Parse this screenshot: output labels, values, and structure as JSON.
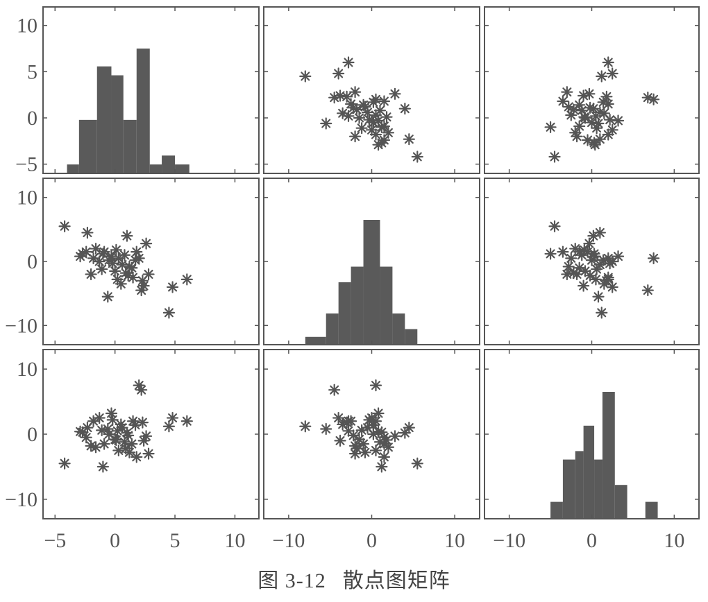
{
  "caption": {
    "number": "图 3-12",
    "title": "散点图矩阵"
  },
  "colors": {
    "ink": "#555555",
    "frame": "#555555",
    "background": "#ffffff",
    "bar": "#5a5a5a",
    "marker": "#555555"
  },
  "chart_data": {
    "type": "scatter-matrix",
    "grid": false,
    "variables": 3,
    "axis_ranges": [
      [
        -6,
        12
      ],
      [
        -13,
        13
      ],
      [
        -13,
        13
      ]
    ],
    "y_ticks": {
      "row1": [
        {
          "v": 10,
          "label": "10"
        },
        {
          "v": 5,
          "label": "5"
        },
        {
          "v": 0,
          "label": "0"
        },
        {
          "v": -5,
          "label": "−5"
        }
      ],
      "row2": [
        {
          "v": 10,
          "label": "10"
        },
        {
          "v": 0,
          "label": "0"
        },
        {
          "v": -10,
          "label": "−10"
        }
      ],
      "row3": [
        {
          "v": 10,
          "label": "10"
        },
        {
          "v": 0,
          "label": "0"
        },
        {
          "v": -10,
          "label": "−10"
        }
      ]
    },
    "x_ticks": {
      "col1": [
        {
          "v": -5,
          "label": "−5"
        },
        {
          "v": 0,
          "label": "0"
        },
        {
          "v": 5,
          "label": "5"
        },
        {
          "v": 10,
          "label": "10"
        }
      ],
      "col2": [
        {
          "v": -10,
          "label": "−10"
        },
        {
          "v": 0,
          "label": "0"
        },
        {
          "v": 10,
          "label": "10"
        }
      ],
      "col3": [
        {
          "v": -10,
          "label": "−10"
        },
        {
          "v": 0,
          "label": "0"
        },
        {
          "v": 10,
          "label": "10"
        }
      ]
    },
    "histograms": [
      {
        "variable": 1,
        "bars": [
          {
            "x0": -4,
            "x1": -3,
            "v": 1
          },
          {
            "x0": -3,
            "x1": -1.5,
            "v": 6
          },
          {
            "x0": -1.5,
            "x1": -0.3,
            "v": 12
          },
          {
            "x0": -0.3,
            "x1": 0.7,
            "v": 11
          },
          {
            "x0": 0.7,
            "x1": 1.8,
            "v": 6
          },
          {
            "x0": 1.8,
            "x1": 2.9,
            "v": 14
          },
          {
            "x0": 2.9,
            "x1": 3.9,
            "v": 1
          },
          {
            "x0": 3.9,
            "x1": 5.0,
            "v": 2
          },
          {
            "x0": 5.0,
            "x1": 6.2,
            "v": 1
          }
        ]
      },
      {
        "variable": 2,
        "bars": [
          {
            "x0": -8,
            "x1": -5.5,
            "v": 1
          },
          {
            "x0": -5.5,
            "x1": -4,
            "v": 4
          },
          {
            "x0": -4,
            "x1": -2.5,
            "v": 8
          },
          {
            "x0": -2.5,
            "x1": -1,
            "v": 10
          },
          {
            "x0": -1,
            "x1": 1,
            "v": 16
          },
          {
            "x0": 1,
            "x1": 2.5,
            "v": 10
          },
          {
            "x0": 2.5,
            "x1": 4,
            "v": 4
          },
          {
            "x0": 4,
            "x1": 5.5,
            "v": 2
          }
        ]
      },
      {
        "variable": 3,
        "bars": [
          {
            "x0": -5,
            "x1": -3.5,
            "v": 2
          },
          {
            "x0": -3.5,
            "x1": -2,
            "v": 7
          },
          {
            "x0": -2,
            "x1": -1,
            "v": 8
          },
          {
            "x0": -1,
            "x1": 0.3,
            "v": 11
          },
          {
            "x0": 0.3,
            "x1": 1.3,
            "v": 7
          },
          {
            "x0": 1.3,
            "x1": 2.8,
            "v": 15
          },
          {
            "x0": 2.8,
            "x1": 4.3,
            "v": 4
          },
          {
            "x0": 6.5,
            "x1": 8,
            "v": 2
          }
        ]
      }
    ],
    "samples": {
      "v1": [
        -4.2,
        -2.3,
        -2.4,
        -2.7,
        -1.8,
        -2.0,
        -1.3,
        -1.0,
        -0.9,
        -0.5,
        -0.3,
        0.0,
        0.2,
        0.3,
        0.5,
        0.8,
        1.0,
        1.2,
        1.5,
        1.8,
        2.0,
        2.3,
        2.6,
        2.2,
        -0.6,
        -1.6,
        0.6,
        1.4,
        4.8,
        6.0,
        4.5,
        2.8,
        -1.1,
        0.1,
        1.7,
        -2.9,
        0.9,
        -0.2,
        2.4,
        1.1
      ],
      "v2": [
        5.5,
        4.5,
        1.5,
        1.2,
        0.5,
        -2.0,
        0.0,
        1.2,
        1.5,
        0.2,
        0.8,
        -1.5,
        -2.8,
        0.5,
        -3.5,
        1.0,
        4.0,
        -0.8,
        -2.5,
        1.5,
        0.5,
        -3.0,
        2.8,
        -4.5,
        -5.5,
        2.0,
        -0.5,
        -1.0,
        -4.0,
        -2.8,
        -8.0,
        -2.0,
        -1.2,
        1.8,
        0.2,
        0.8,
        -1.8,
        -0.3,
        -3.8,
        -2.2
      ],
      "v3": [
        -4.5,
        1.0,
        -0.5,
        0.3,
        2.0,
        -1.8,
        2.5,
        -5.0,
        -1.5,
        0.0,
        3.2,
        -0.8,
        0.5,
        -2.5,
        1.5,
        -1.2,
        0.2,
        -2.8,
        2.0,
        -3.5,
        7.5,
        1.8,
        -0.3,
        6.8,
        0.8,
        -2.0,
        1.0,
        -1.5,
        2.5,
        2.0,
        1.2,
        -3.0,
        0.6,
        -0.9,
        1.4,
        0.4,
        -2.2,
        2.2,
        -1.0,
        -0.2
      ]
    }
  }
}
